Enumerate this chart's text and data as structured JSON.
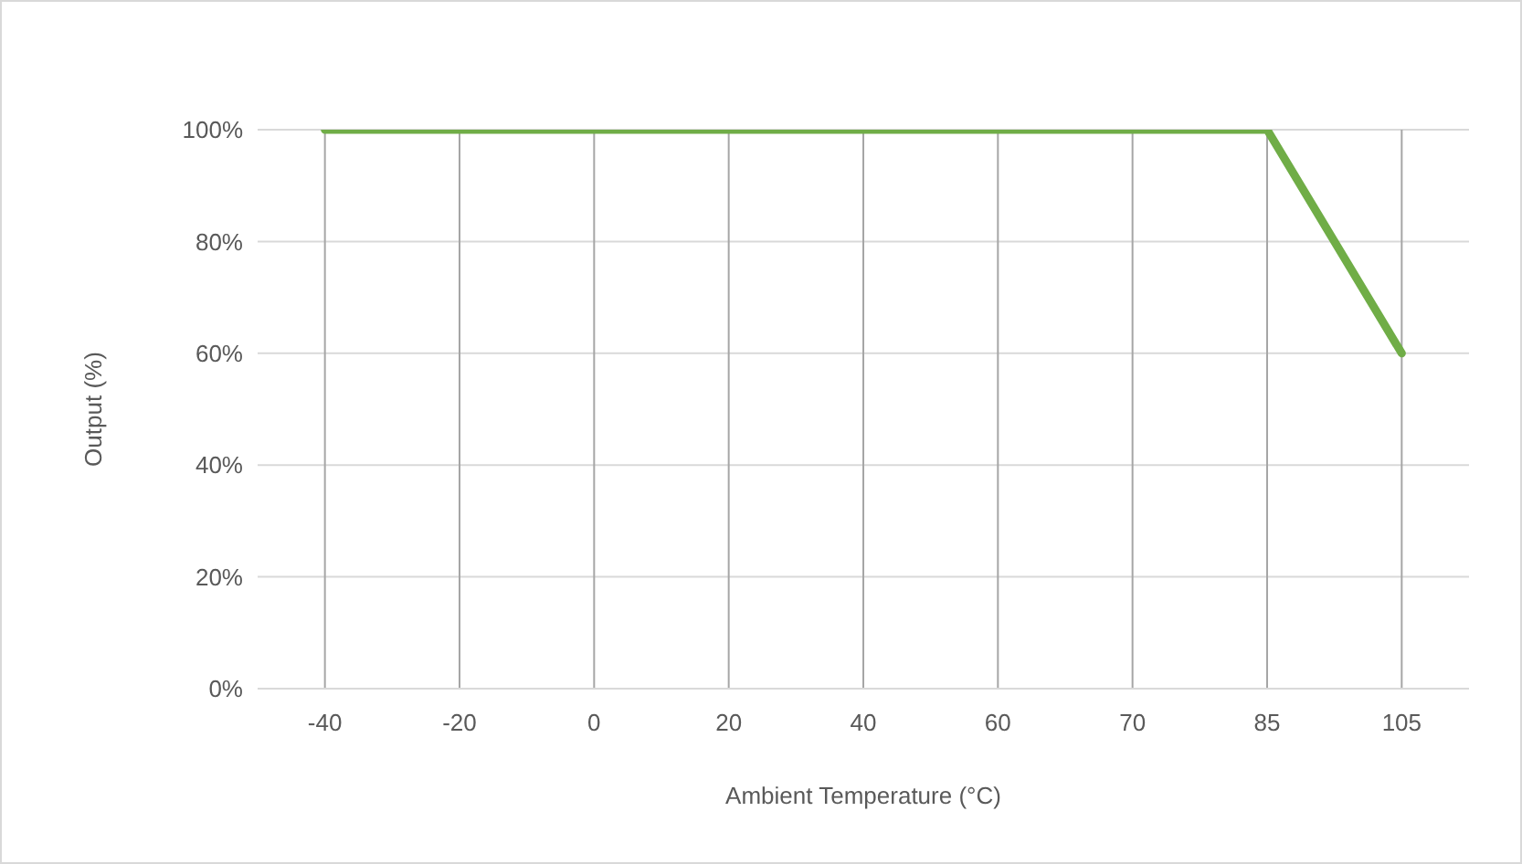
{
  "chart_data": {
    "type": "line",
    "xlabel": "Ambient Temperature (°C)",
    "ylabel": "Output (%)",
    "categories": [
      "-40",
      "-20",
      "0",
      "20",
      "40",
      "60",
      "70",
      "85",
      "105"
    ],
    "series": [
      {
        "color": "#70ad47",
        "values": [
          100,
          100,
          100,
          100,
          100,
          100,
          100,
          100,
          60
        ]
      }
    ],
    "ylim": [
      0,
      100
    ],
    "yticks": [
      {
        "value": 0,
        "label": "0%"
      },
      {
        "value": 20,
        "label": "20%"
      },
      {
        "value": 40,
        "label": "40%"
      },
      {
        "value": 60,
        "label": "60%"
      },
      {
        "value": 80,
        "label": "80%"
      },
      {
        "value": 100,
        "label": "100%"
      }
    ],
    "grid": true,
    "marker": "none",
    "line_style": "solid"
  }
}
